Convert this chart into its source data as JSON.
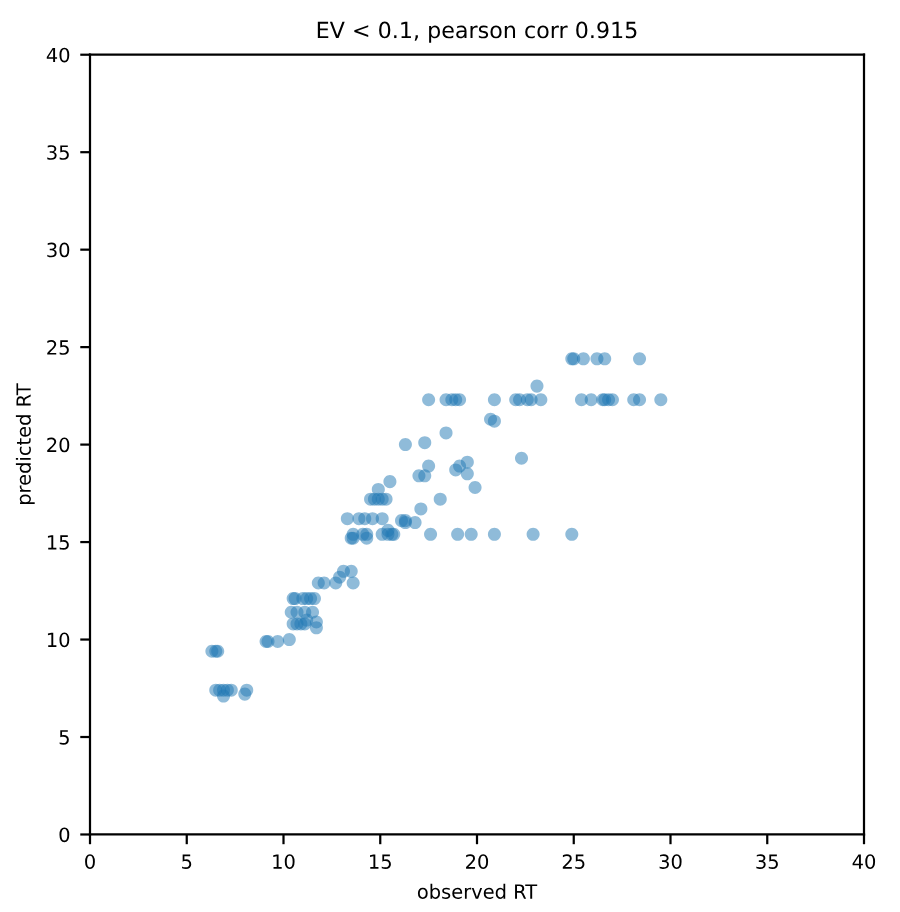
{
  "chart_data": {
    "type": "scatter",
    "title": "EV < 0.1, pearson corr 0.915",
    "xlabel": "observed RT",
    "ylabel": "predicted RT",
    "xlim": [
      0,
      40
    ],
    "ylim": [
      0,
      40
    ],
    "xticks": [
      0,
      5,
      10,
      15,
      20,
      25,
      30,
      35,
      40
    ],
    "yticks": [
      0,
      5,
      10,
      15,
      20,
      25,
      30,
      35,
      40
    ],
    "grid": false,
    "marker": "circle",
    "series": [
      {
        "color": "#1f77b4",
        "x": [
          6.3,
          6.5,
          6.6,
          6.5,
          6.7,
          6.9,
          7.1,
          7.3,
          6.9,
          8.1,
          8.0,
          9.1,
          9.2,
          9.7,
          10.3,
          10.5,
          10.6,
          11.0,
          11.2,
          11.4,
          11.6,
          10.4,
          10.7,
          11.1,
          11.5,
          10.5,
          10.7,
          10.9,
          11.1,
          11.2,
          11.7,
          11.7,
          11.8,
          12.1,
          12.7,
          13.6,
          12.9,
          13.1,
          13.5,
          13.3,
          13.9,
          14.2,
          14.6,
          15.1,
          13.6,
          14.1,
          14.3,
          15.1,
          15.4,
          15.6,
          15.7,
          13.5,
          13.6,
          14.3,
          15.4,
          14.5,
          14.7,
          14.9,
          15.1,
          15.3,
          14.9,
          15.5,
          16.1,
          16.3,
          16.3,
          16.8,
          17.6,
          19.0,
          19.7,
          20.9,
          22.9,
          24.9,
          17.1,
          18.1,
          17.0,
          17.3,
          17.5,
          16.3,
          17.3,
          18.4,
          18.9,
          19.1,
          19.5,
          19.5,
          19.9,
          17.5,
          18.4,
          18.7,
          18.9,
          19.1,
          20.9,
          22.0,
          22.2,
          22.6,
          22.8,
          23.3,
          25.4,
          25.9,
          26.5,
          26.6,
          26.8,
          27.0,
          28.1,
          28.4,
          29.5,
          20.7,
          20.9,
          22.3,
          23.1,
          24.9,
          25.0,
          25.5,
          26.2,
          26.6,
          28.4
        ],
        "values": [
          9.4,
          9.4,
          9.4,
          7.4,
          7.4,
          7.4,
          7.4,
          7.4,
          7.1,
          7.4,
          7.2,
          9.9,
          9.9,
          9.9,
          10.0,
          12.1,
          12.1,
          12.1,
          12.1,
          12.1,
          12.1,
          11.4,
          11.4,
          11.4,
          11.4,
          10.8,
          10.8,
          10.8,
          10.8,
          11.0,
          10.9,
          10.6,
          12.9,
          12.9,
          12.9,
          12.9,
          13.2,
          13.5,
          13.5,
          16.2,
          16.2,
          16.2,
          16.2,
          16.2,
          15.4,
          15.4,
          15.4,
          15.4,
          15.4,
          15.4,
          15.4,
          15.2,
          15.2,
          15.2,
          15.6,
          17.2,
          17.2,
          17.2,
          17.2,
          17.2,
          17.7,
          18.1,
          16.1,
          16.1,
          16.0,
          16.0,
          15.4,
          15.4,
          15.4,
          15.4,
          15.4,
          15.4,
          16.7,
          17.2,
          18.4,
          18.4,
          18.9,
          20.0,
          20.1,
          20.6,
          18.7,
          18.9,
          19.1,
          18.5,
          17.8,
          22.3,
          22.3,
          22.3,
          22.3,
          22.3,
          22.3,
          22.3,
          22.3,
          22.3,
          22.3,
          22.3,
          22.3,
          22.3,
          22.3,
          22.3,
          22.3,
          22.3,
          22.3,
          22.3,
          22.3,
          21.3,
          21.2,
          19.3,
          23.0,
          24.4,
          24.4,
          24.4,
          24.4,
          24.4,
          24.4
        ]
      }
    ]
  }
}
